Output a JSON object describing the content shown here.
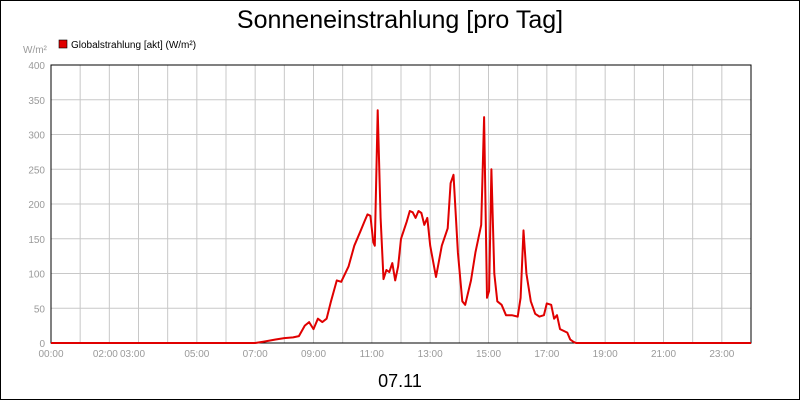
{
  "chart_data": {
    "type": "line",
    "title": "Sonneneinstrahlung [pro Tag]",
    "ylabel": "W/m²",
    "xlabel": "07.11",
    "ylim": [
      0,
      400
    ],
    "xlim": [
      0,
      24
    ],
    "grid": true,
    "legend_position": "top-left",
    "y_ticks": [
      0,
      50,
      100,
      150,
      200,
      250,
      300,
      350,
      400
    ],
    "x_ticks": [
      {
        "x": 0,
        "label": "00:00"
      },
      {
        "x": 2,
        "label": "02:00"
      },
      {
        "x": 3,
        "label": "03:00"
      },
      {
        "x": 5,
        "label": "05:00"
      },
      {
        "x": 7,
        "label": "07:00"
      },
      {
        "x": 9,
        "label": "09:00"
      },
      {
        "x": 11,
        "label": "11:00"
      },
      {
        "x": 13,
        "label": "13:00"
      },
      {
        "x": 15,
        "label": "15:00"
      },
      {
        "x": 17,
        "label": "17:00"
      },
      {
        "x": 19,
        "label": "19:00"
      },
      {
        "x": 21,
        "label": "21:00"
      },
      {
        "x": 23,
        "label": "23:00"
      }
    ],
    "series": [
      {
        "name": "Globalstrahlung [akt] (W/m²)",
        "color": "#e00000",
        "points": [
          [
            0.0,
            0
          ],
          [
            7.0,
            0
          ],
          [
            7.3,
            2
          ],
          [
            7.7,
            5
          ],
          [
            8.0,
            7
          ],
          [
            8.3,
            8
          ],
          [
            8.5,
            10
          ],
          [
            8.7,
            25
          ],
          [
            8.85,
            30
          ],
          [
            9.0,
            20
          ],
          [
            9.15,
            35
          ],
          [
            9.3,
            30
          ],
          [
            9.45,
            35
          ],
          [
            9.6,
            60
          ],
          [
            9.8,
            90
          ],
          [
            9.95,
            88
          ],
          [
            10.2,
            110
          ],
          [
            10.4,
            140
          ],
          [
            10.6,
            160
          ],
          [
            10.75,
            175
          ],
          [
            10.85,
            185
          ],
          [
            10.95,
            183
          ],
          [
            11.05,
            145
          ],
          [
            11.1,
            140
          ],
          [
            11.2,
            335
          ],
          [
            11.3,
            180
          ],
          [
            11.4,
            92
          ],
          [
            11.5,
            105
          ],
          [
            11.6,
            102
          ],
          [
            11.7,
            115
          ],
          [
            11.8,
            90
          ],
          [
            11.9,
            110
          ],
          [
            12.0,
            150
          ],
          [
            12.2,
            175
          ],
          [
            12.3,
            190
          ],
          [
            12.4,
            188
          ],
          [
            12.5,
            180
          ],
          [
            12.6,
            190
          ],
          [
            12.7,
            187
          ],
          [
            12.8,
            170
          ],
          [
            12.9,
            180
          ],
          [
            13.0,
            140
          ],
          [
            13.2,
            95
          ],
          [
            13.4,
            140
          ],
          [
            13.6,
            165
          ],
          [
            13.7,
            230
          ],
          [
            13.8,
            242
          ],
          [
            13.95,
            130
          ],
          [
            14.1,
            60
          ],
          [
            14.2,
            55
          ],
          [
            14.4,
            90
          ],
          [
            14.55,
            130
          ],
          [
            14.75,
            170
          ],
          [
            14.85,
            325
          ],
          [
            14.95,
            65
          ],
          [
            15.02,
            75
          ],
          [
            15.1,
            250
          ],
          [
            15.2,
            100
          ],
          [
            15.3,
            60
          ],
          [
            15.45,
            55
          ],
          [
            15.6,
            40
          ],
          [
            15.8,
            40
          ],
          [
            16.0,
            38
          ],
          [
            16.1,
            65
          ],
          [
            16.2,
            162
          ],
          [
            16.3,
            100
          ],
          [
            16.45,
            60
          ],
          [
            16.6,
            42
          ],
          [
            16.75,
            38
          ],
          [
            16.9,
            40
          ],
          [
            17.0,
            57
          ],
          [
            17.15,
            55
          ],
          [
            17.25,
            35
          ],
          [
            17.35,
            40
          ],
          [
            17.45,
            20
          ],
          [
            17.55,
            18
          ],
          [
            17.7,
            15
          ],
          [
            17.8,
            5
          ],
          [
            17.9,
            2
          ],
          [
            18.0,
            0
          ],
          [
            24.0,
            0
          ]
        ]
      }
    ]
  }
}
